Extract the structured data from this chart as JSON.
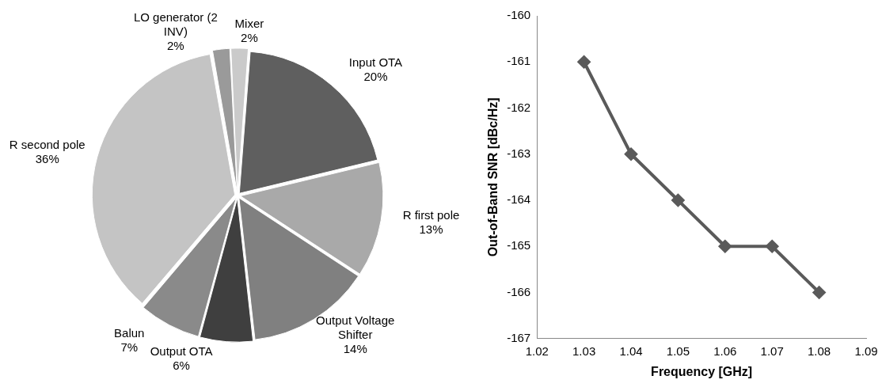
{
  "chart_data": [
    {
      "type": "pie",
      "categories": [
        "LO generator (2 INV)",
        "Mixer",
        "Input OTA",
        "R first pole",
        "Output Voltage Shifter",
        "Output OTA",
        "Balun",
        "R second pole"
      ],
      "values": [
        2,
        2,
        20,
        13,
        14,
        6,
        7,
        36
      ],
      "value_labels": [
        "2%",
        "2%",
        "20%",
        "13%",
        "14%",
        "6%",
        "7%",
        "36%"
      ],
      "colors": [
        "#9a9a9a",
        "#cacaca",
        "#5f5f5f",
        "#a9a9a9",
        "#808080",
        "#3f3f3f",
        "#8a8a8a",
        "#c4c4c4"
      ],
      "legend": false
    },
    {
      "type": "line",
      "x": [
        1.03,
        1.04,
        1.05,
        1.06,
        1.07,
        1.08
      ],
      "series": [
        {
          "color": "#5a5a5a",
          "values": [
            -161,
            -163,
            -164,
            -165,
            -165,
            -166
          ]
        }
      ],
      "xlim": [
        1.02,
        1.09
      ],
      "xticks": [
        {
          "value": 1.02,
          "label": "1.02"
        },
        {
          "value": 1.03,
          "label": "1.03"
        },
        {
          "value": 1.04,
          "label": "1.04"
        },
        {
          "value": 1.05,
          "label": "1.05"
        },
        {
          "value": 1.06,
          "label": "1.06"
        },
        {
          "value": 1.07,
          "label": "1.07"
        },
        {
          "value": 1.08,
          "label": "1.08"
        },
        {
          "value": 1.09,
          "label": "1.09"
        }
      ],
      "ylim": [
        -167,
        -160
      ],
      "yticks": [
        -167,
        -166,
        -165,
        -164,
        -163,
        -162,
        -161,
        -160
      ],
      "xlabel": "Frequency [GHz]",
      "ylabel": "Out-of-Band SNR [dBc/Hz]",
      "grid": false,
      "legend": false,
      "marker": "diamond",
      "line_style": "solid"
    }
  ]
}
